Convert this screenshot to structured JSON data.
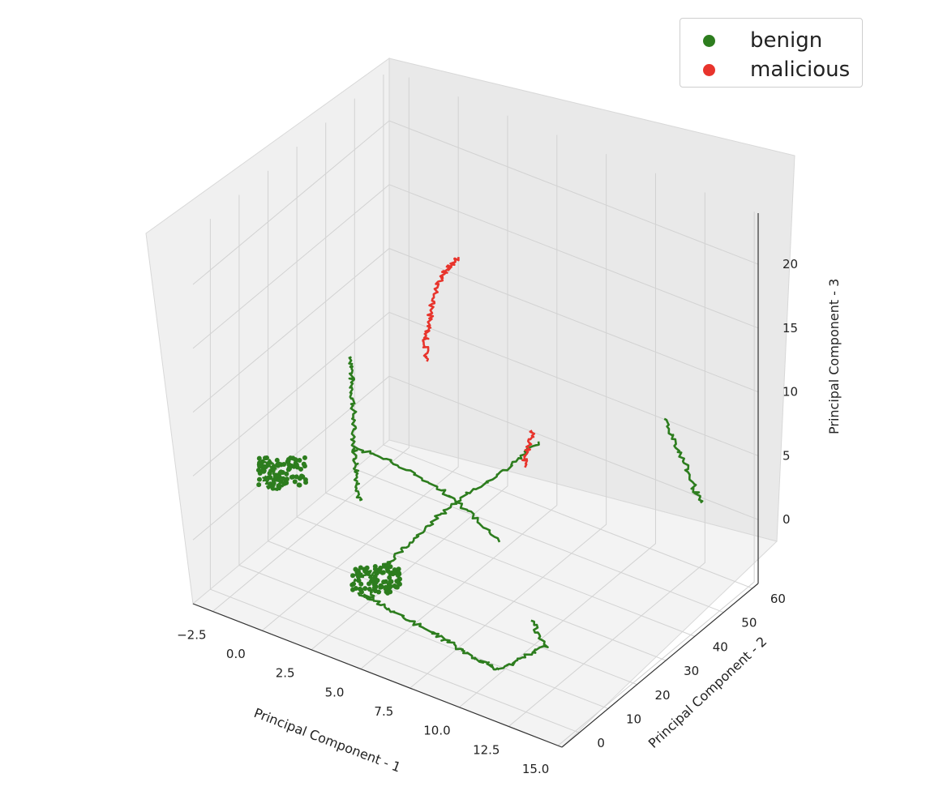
{
  "chart_data": {
    "type": "scatter3d",
    "xlabel": "Principal Component - 1",
    "ylabel": "Principal Component - 2",
    "zlabel": "Principal Component - 3",
    "xlim": [
      -3.5,
      15.2
    ],
    "ylim": [
      -6,
      62
    ],
    "zlim": [
      -5,
      24
    ],
    "xticks": [
      "−2.5",
      "0.0",
      "2.5",
      "5.0",
      "7.5",
      "10.0",
      "12.5",
      "15.0"
    ],
    "yticks": [
      "0",
      "10",
      "20",
      "30",
      "40",
      "50",
      "60"
    ],
    "zticks": [
      "0",
      "5",
      "10",
      "15",
      "20"
    ],
    "grid": true,
    "legend_position": "top-right",
    "series": [
      {
        "name": "benign",
        "color": "#2d7d1e",
        "segments": [
          {
            "label": "cluster-left-vertical",
            "points": [
              [
                -1.9,
                38,
                7
              ],
              [
                -1.9,
                38,
                5
              ],
              [
                -1.8,
                38,
                3
              ],
              [
                -1.8,
                38,
                1
              ],
              [
                -1.7,
                38,
                -1
              ],
              [
                -1.6,
                38,
                -2.5
              ],
              [
                -1.5,
                38,
                -4
              ]
            ]
          },
          {
            "label": "left-blob",
            "points": [
              [
                -2.6,
                12,
                2.5
              ],
              [
                -2.3,
                12,
                3.5
              ],
              [
                -2.0,
                12,
                3
              ],
              [
                -1.7,
                12,
                2
              ],
              [
                -1.9,
                12,
                1.5
              ],
              [
                -2.3,
                12,
                1.5
              ],
              [
                -2.5,
                12,
                2.2
              ]
            ]
          },
          {
            "label": "left-horizontal",
            "points": [
              [
                -1.8,
                38,
                0
              ],
              [
                0.2,
                38,
                0
              ],
              [
                2.2,
                38,
                -0.5
              ],
              [
                4.0,
                38,
                -1.5
              ],
              [
                5.6,
                38,
                -3
              ]
            ]
          },
          {
            "label": "middle-vertical",
            "points": [
              [
                3.6,
                8,
                -1
              ],
              [
                4.2,
                10,
                0
              ],
              [
                4.9,
                13,
                1.5
              ],
              [
                5.6,
                17,
                3
              ],
              [
                6.5,
                22,
                4.5
              ],
              [
                7.6,
                27,
                6
              ],
              [
                8.6,
                31,
                8
              ]
            ]
          },
          {
            "label": "middle-blob",
            "points": [
              [
                3.0,
                6,
                -1.5
              ],
              [
                3.6,
                6,
                -0.5
              ],
              [
                4.0,
                6,
                -1
              ],
              [
                3.8,
                6,
                -2.5
              ],
              [
                3.2,
                6,
                -2.5
              ]
            ]
          },
          {
            "label": "bottom-long",
            "points": [
              [
                4.0,
                6,
                -2.5
              ],
              [
                5.5,
                6,
                -3
              ],
              [
                7.0,
                6,
                -3.3
              ],
              [
                8.5,
                5,
                -3.5
              ],
              [
                9.5,
                5,
                -3.8
              ],
              [
                10.4,
                5,
                -3.9
              ]
            ]
          },
          {
            "label": "bottom-right-spur",
            "points": [
              [
                10.4,
                5,
                -3.9
              ],
              [
                11.2,
                8,
                -3
              ],
              [
                12.0,
                10,
                -2
              ],
              [
                11.0,
                12,
                -1
              ]
            ]
          },
          {
            "label": "far-right",
            "points": [
              [
                11.5,
                55,
                7
              ],
              [
                12.2,
                55,
                5
              ],
              [
                12.8,
                55,
                3
              ],
              [
                13.3,
                55,
                1.5
              ]
            ]
          }
        ]
      },
      {
        "name": "malicious",
        "color": "#e8342c",
        "segments": [
          {
            "label": "malicious-main",
            "points": [
              [
                2.4,
                45,
                16
              ],
              [
                2.0,
                45,
                15
              ],
              [
                1.6,
                45,
                14
              ],
              [
                1.2,
                45,
                12
              ],
              [
                1.0,
                45,
                10
              ],
              [
                0.8,
                45,
                8.5
              ],
              [
                0.9,
                45,
                7
              ]
            ]
          },
          {
            "label": "malicious-bottom",
            "points": [
              [
                7.0,
                37,
                4
              ],
              [
                7.2,
                37,
                5.5
              ],
              [
                7.4,
                37,
                7
              ]
            ]
          }
        ]
      }
    ]
  },
  "legend": {
    "items": [
      {
        "label": "benign",
        "color": "#2d7d1e"
      },
      {
        "label": "malicious",
        "color": "#e8342c"
      }
    ]
  }
}
